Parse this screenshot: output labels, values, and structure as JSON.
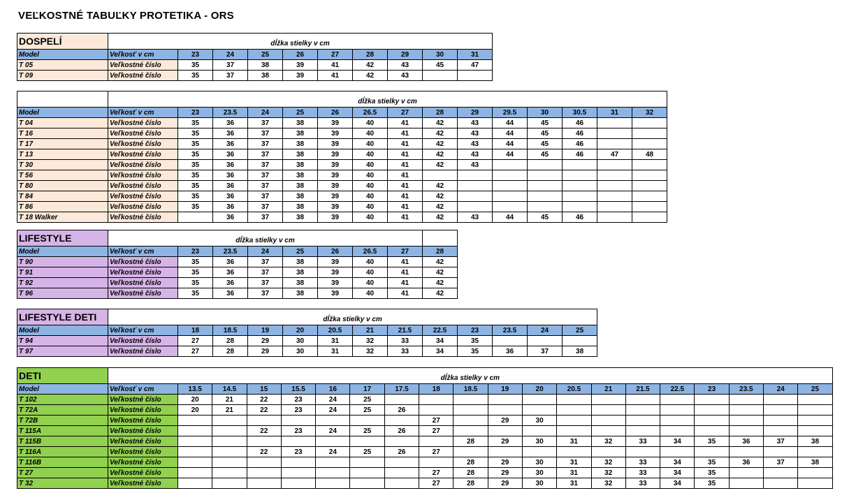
{
  "page_title": "VEĽKOSTNÉ TABUĽKY PROTETIKA - ORS",
  "colors": {
    "header_blue": "#8db4e2",
    "dospeli_beige": "#fde9d9",
    "lifestyle_purple": "#d6b4e7",
    "deti_green": "#92d050"
  },
  "tables": [
    {
      "title": "DOSPELÍ",
      "color": "dospeli",
      "caption": "dĺžka stielky v cm",
      "model_label": "Model",
      "size_label": "Veľkosť  v cm",
      "row_label": "Veľkostné číslo",
      "sizes": [
        "23",
        "24",
        "25",
        "26",
        "27",
        "28",
        "29",
        "30",
        "31"
      ],
      "rows": [
        {
          "model": "T 05",
          "values": [
            "35",
            "37",
            "38",
            "39",
            "41",
            "42",
            "43",
            "45",
            "47"
          ]
        },
        {
          "model": "T 09",
          "values": [
            "35",
            "37",
            "38",
            "39",
            "41",
            "42",
            "43",
            "",
            ""
          ]
        }
      ]
    },
    {
      "title": "",
      "color": "dospeli",
      "caption": "dĺžka stielky v cm",
      "model_label": "Model",
      "size_label": "Veľkosť  v cm",
      "row_label": "Veľkostné číslo",
      "sizes": [
        "23",
        "23.5",
        "24",
        "25",
        "26",
        "26.5",
        "27",
        "28",
        "29",
        "29.5",
        "30",
        "30.5",
        "31",
        "32"
      ],
      "rows": [
        {
          "model": "T 04",
          "values": [
            "35",
            "36",
            "37",
            "38",
            "39",
            "40",
            "41",
            "42",
            "43",
            "44",
            "45",
            "46",
            "",
            ""
          ]
        },
        {
          "model": "T 16",
          "values": [
            "35",
            "36",
            "37",
            "38",
            "39",
            "40",
            "41",
            "42",
            "43",
            "44",
            "45",
            "46",
            "",
            ""
          ]
        },
        {
          "model": "T 17",
          "values": [
            "35",
            "36",
            "37",
            "38",
            "39",
            "40",
            "41",
            "42",
            "43",
            "44",
            "45",
            "46",
            "",
            ""
          ]
        },
        {
          "model": "T 13",
          "values": [
            "35",
            "36",
            "37",
            "38",
            "39",
            "40",
            "41",
            "42",
            "43",
            "44",
            "45",
            "46",
            "47",
            "48"
          ]
        },
        {
          "model": "T 30",
          "values": [
            "35",
            "36",
            "37",
            "38",
            "39",
            "40",
            "41",
            "42",
            "43",
            "",
            "",
            "",
            "",
            ""
          ]
        },
        {
          "model": "T 56",
          "values": [
            "35",
            "36",
            "37",
            "38",
            "39",
            "40",
            "41",
            "",
            "",
            "",
            "",
            "",
            "",
            ""
          ]
        },
        {
          "model": "T 80",
          "values": [
            "35",
            "36",
            "37",
            "38",
            "39",
            "40",
            "41",
            "42",
            "",
            "",
            "",
            "",
            "",
            ""
          ]
        },
        {
          "model": "T 84",
          "values": [
            "35",
            "36",
            "37",
            "38",
            "39",
            "40",
            "41",
            "42",
            "",
            "",
            "",
            "",
            "",
            ""
          ]
        },
        {
          "model": "T 86",
          "values": [
            "35",
            "36",
            "37",
            "38",
            "39",
            "40",
            "41",
            "42",
            "",
            "",
            "",
            "",
            "",
            ""
          ]
        },
        {
          "model": "T 18 Walker",
          "values": [
            "",
            "36",
            "37",
            "38",
            "39",
            "40",
            "41",
            "42",
            "43",
            "44",
            "45",
            "46",
            "",
            ""
          ]
        }
      ]
    },
    {
      "title": "LIFESTYLE",
      "color": "life",
      "caption": "dĺžka stielky v cm",
      "model_label": "Model",
      "size_label": "Veľkosť  v cm",
      "row_label": "Veľkostné číslo",
      "sizes": [
        "23",
        "23.5",
        "24",
        "25",
        "26",
        "26.5",
        "27",
        "28"
      ],
      "rows": [
        {
          "model": "T 90",
          "values": [
            "35",
            "36",
            "37",
            "38",
            "39",
            "40",
            "41",
            "42"
          ]
        },
        {
          "model": "T 91",
          "values": [
            "35",
            "36",
            "37",
            "38",
            "39",
            "40",
            "41",
            "42"
          ]
        },
        {
          "model": "T 92",
          "values": [
            "35",
            "36",
            "37",
            "38",
            "39",
            "40",
            "41",
            "42"
          ]
        },
        {
          "model": "T 96",
          "values": [
            "35",
            "36",
            "37",
            "38",
            "39",
            "40",
            "41",
            "42"
          ]
        }
      ]
    },
    {
      "title": "LIFESTYLE DETI",
      "color": "life",
      "caption": "dĺžka stielky v cm",
      "model_label": "Model",
      "size_label": "Veľkosť  v cm",
      "row_label": "Veľkostné číslo",
      "sizes": [
        "18",
        "18.5",
        "19",
        "20",
        "20.5",
        "21",
        "21.5",
        "22.5",
        "23",
        "23.5",
        "24",
        "25"
      ],
      "rows": [
        {
          "model": "T 94",
          "values": [
            "27",
            "28",
            "29",
            "30",
            "31",
            "32",
            "33",
            "34",
            "35",
            "",
            "",
            ""
          ]
        },
        {
          "model": "T 97",
          "values": [
            "27",
            "28",
            "29",
            "30",
            "31",
            "32",
            "33",
            "34",
            "35",
            "36",
            "37",
            "38"
          ]
        }
      ]
    },
    {
      "title": "DETI",
      "color": "deti",
      "caption": "dĺžka stielky v cm",
      "model_label": "Model",
      "size_label": "Veľkosť  v cm",
      "row_label": "Veľkostné číslo",
      "sizes": [
        "13.5",
        "14.5",
        "15",
        "15.5",
        "16",
        "17",
        "17.5",
        "18",
        "18.5",
        "19",
        "20",
        "20.5",
        "21",
        "21.5",
        "22.5",
        "23",
        "23.5",
        "24",
        "25"
      ],
      "rows": [
        {
          "model": "T 102",
          "values": [
            "20",
            "21",
            "22",
            "23",
            "24",
            "25",
            "",
            "",
            "",
            "",
            "",
            "",
            "",
            "",
            "",
            "",
            "",
            "",
            ""
          ]
        },
        {
          "model": "T 72A",
          "values": [
            "20",
            "21",
            "22",
            "23",
            "24",
            "25",
            "26",
            "",
            "",
            "",
            "",
            "",
            "",
            "",
            "",
            "",
            "",
            "",
            ""
          ]
        },
        {
          "model": "T 72B",
          "values": [
            "",
            "",
            "",
            "",
            "",
            "",
            "",
            "27",
            "",
            "29",
            "30",
            "",
            "",
            "",
            "",
            "",
            "",
            "",
            ""
          ]
        },
        {
          "model": "T 115A",
          "values": [
            "",
            "",
            "22",
            "23",
            "24",
            "25",
            "26",
            "27",
            "",
            "",
            "",
            "",
            "",
            "",
            "",
            "",
            "",
            "",
            ""
          ]
        },
        {
          "model": "T 115B",
          "values": [
            "",
            "",
            "",
            "",
            "",
            "",
            "",
            "",
            "28",
            "29",
            "30",
            "31",
            "32",
            "33",
            "34",
            "35",
            "36",
            "37",
            "38"
          ]
        },
        {
          "model": "T 116A",
          "values": [
            "",
            "",
            "22",
            "23",
            "24",
            "25",
            "26",
            "27",
            "",
            "",
            "",
            "",
            "",
            "",
            "",
            "",
            "",
            "",
            ""
          ]
        },
        {
          "model": "T 116B",
          "values": [
            "",
            "",
            "",
            "",
            "",
            "",
            "",
            "",
            "28",
            "29",
            "30",
            "31",
            "32",
            "33",
            "34",
            "35",
            "36",
            "37",
            "38"
          ]
        },
        {
          "model": "T 27",
          "values": [
            "",
            "",
            "",
            "",
            "",
            "",
            "",
            "27",
            "28",
            "29",
            "30",
            "31",
            "32",
            "33",
            "34",
            "35",
            "",
            "",
            ""
          ]
        },
        {
          "model": "T 32",
          "values": [
            "",
            "",
            "",
            "",
            "",
            "",
            "",
            "27",
            "28",
            "29",
            "30",
            "31",
            "32",
            "33",
            "34",
            "35",
            "",
            "",
            ""
          ]
        }
      ]
    }
  ]
}
